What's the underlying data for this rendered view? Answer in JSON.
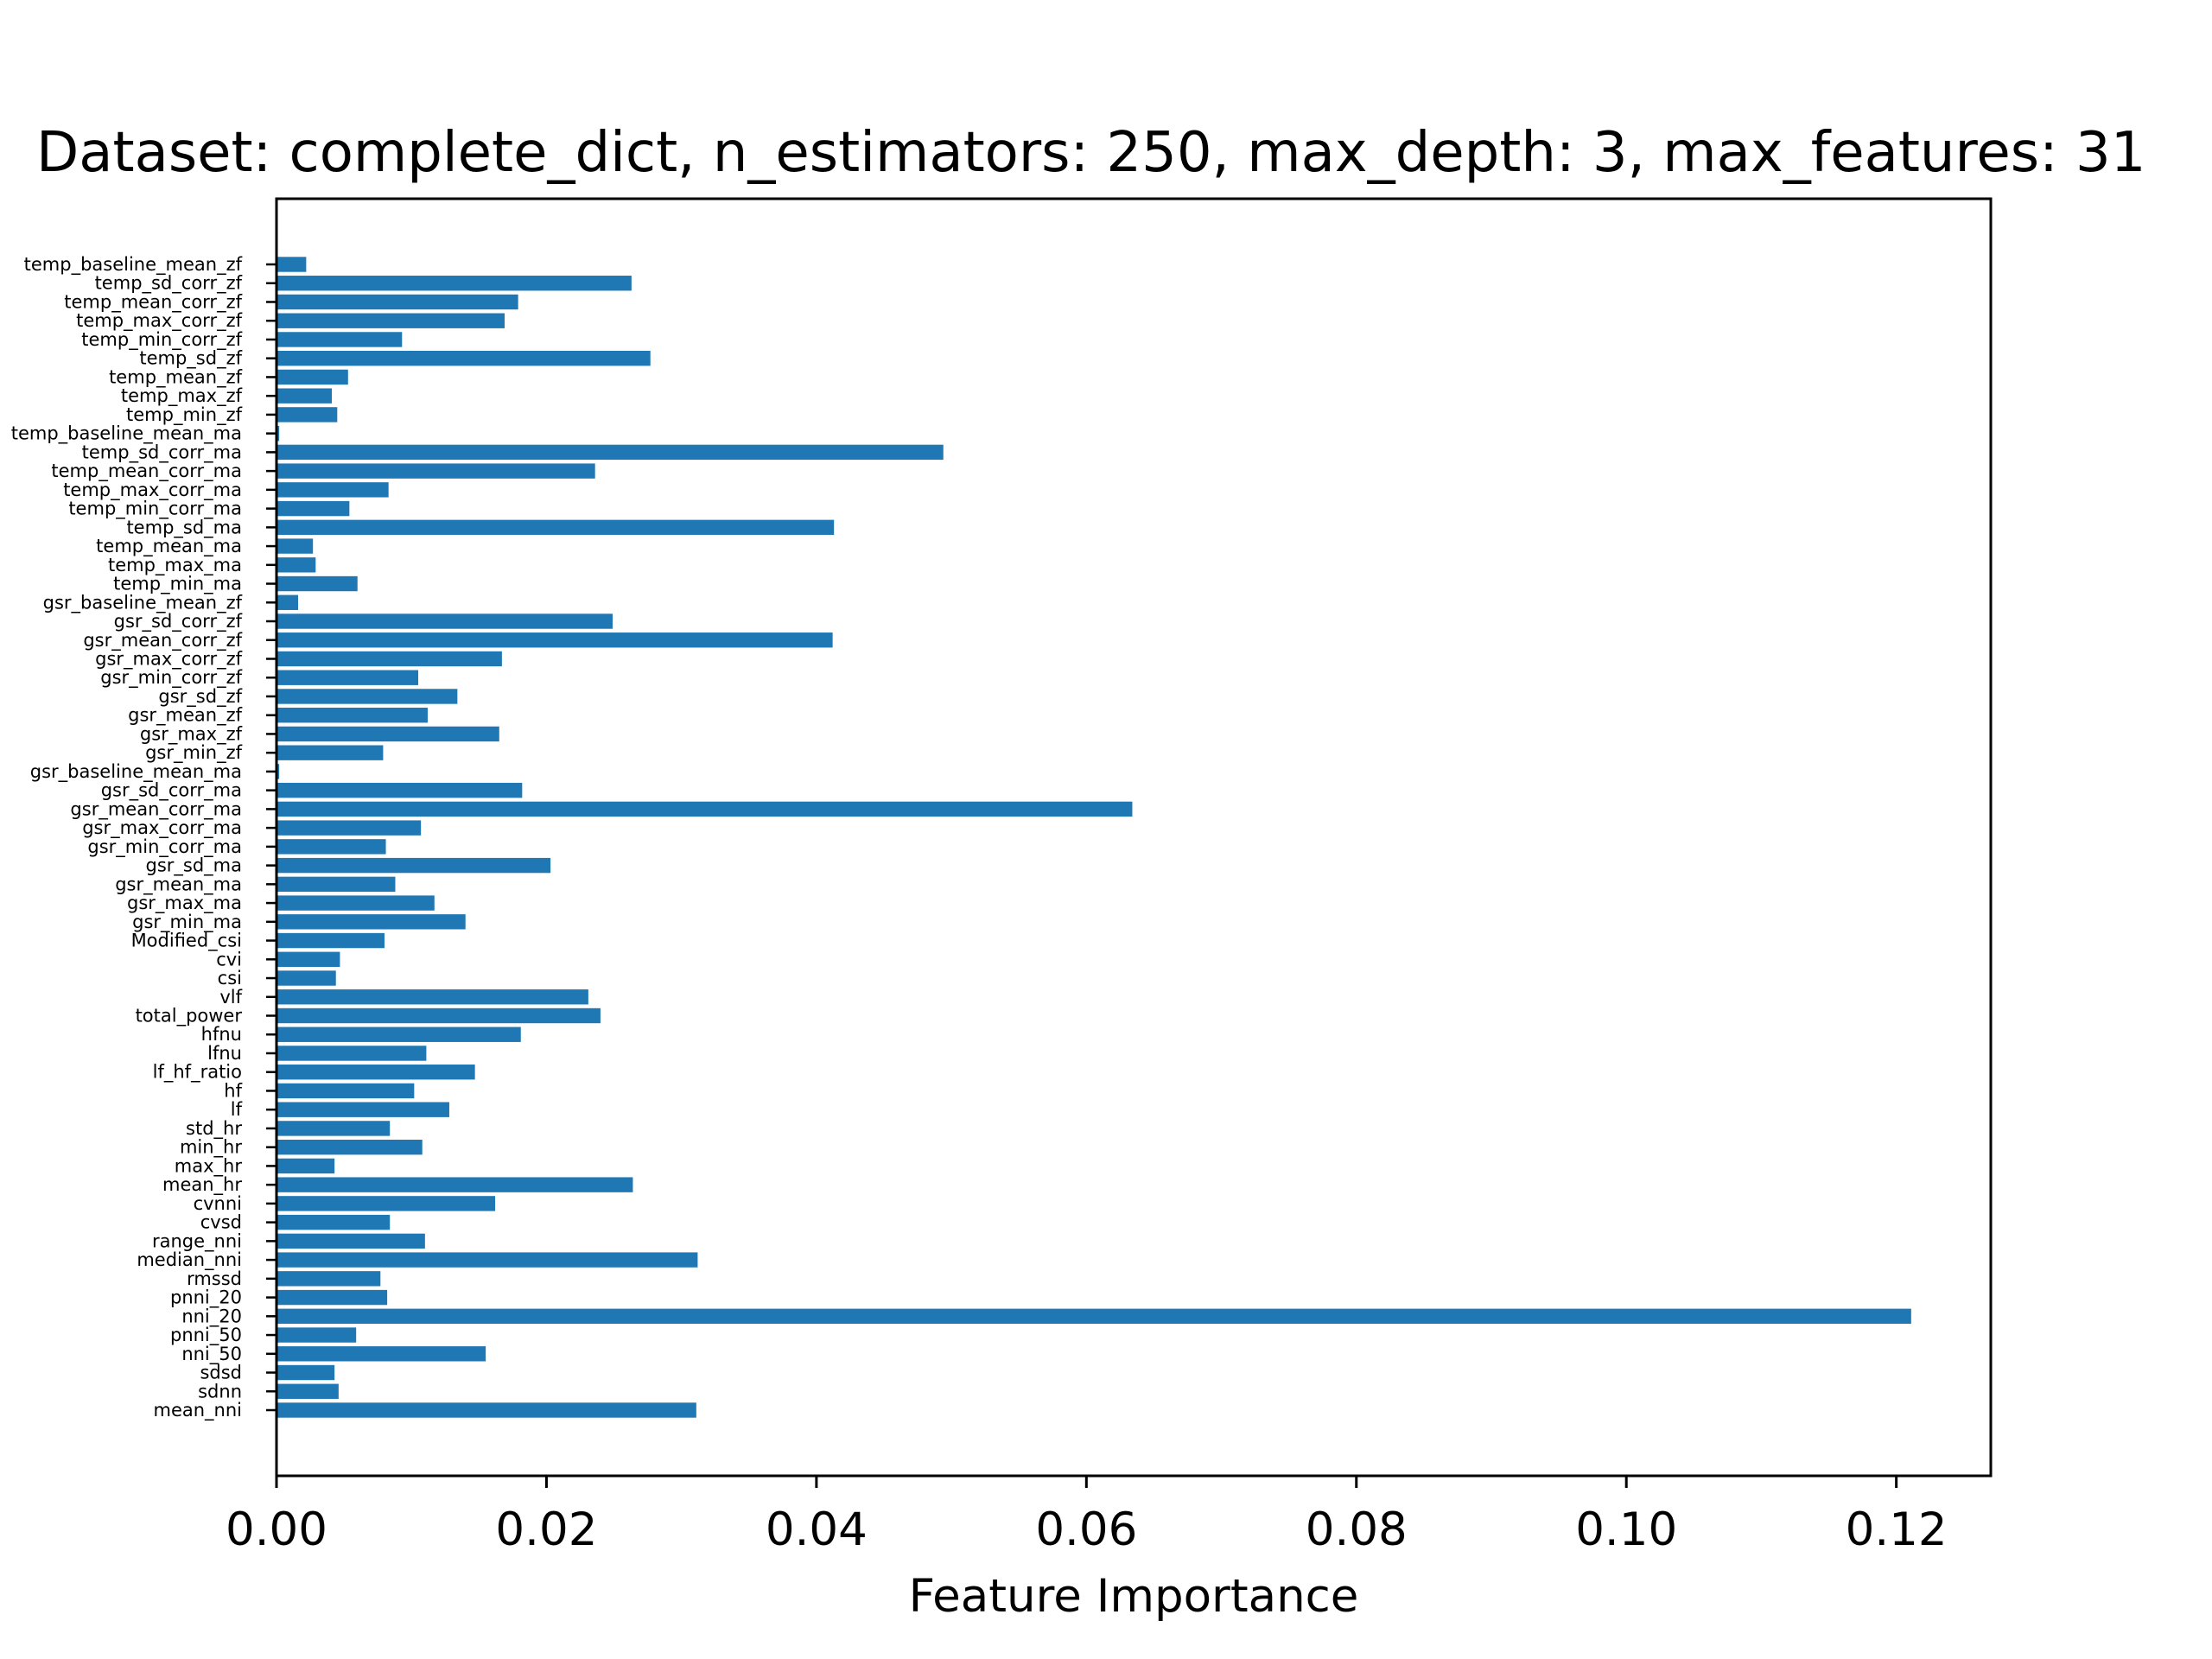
{
  "chart_data": {
    "type": "bar",
    "orientation": "horizontal",
    "title": "Dataset: complete_dict, n_estimators: 250, max_depth: 3, max_features: 31",
    "xlabel": "Feature Importance",
    "ylabel": "",
    "xlim": [
      0,
      0.127
    ],
    "xticks": [
      "0.00",
      "0.02",
      "0.04",
      "0.06",
      "0.08",
      "0.10",
      "0.12"
    ],
    "grid": false,
    "bar_color": "#1f77b4",
    "categories": [
      "mean_nni",
      "sdnn",
      "sdsd",
      "nni_50",
      "pnni_50",
      "nni_20",
      "pnni_20",
      "rmssd",
      "median_nni",
      "range_nni",
      "cvsd",
      "cvnni",
      "mean_hr",
      "max_hr",
      "min_hr",
      "std_hr",
      "lf",
      "hf",
      "lf_hf_ratio",
      "lfnu",
      "hfnu",
      "total_power",
      "vlf",
      "csi",
      "cvi",
      "Modified_csi",
      "gsr_min_ma",
      "gsr_max_ma",
      "gsr_mean_ma",
      "gsr_sd_ma",
      "gsr_min_corr_ma",
      "gsr_max_corr_ma",
      "gsr_mean_corr_ma",
      "gsr_sd_corr_ma",
      "gsr_baseline_mean_ma",
      "gsr_min_zf",
      "gsr_max_zf",
      "gsr_mean_zf",
      "gsr_sd_zf",
      "gsr_min_corr_zf",
      "gsr_max_corr_zf",
      "gsr_mean_corr_zf",
      "gsr_sd_corr_zf",
      "gsr_baseline_mean_zf",
      "temp_min_ma",
      "temp_max_ma",
      "temp_mean_ma",
      "temp_sd_ma",
      "temp_min_corr_ma",
      "temp_max_corr_ma",
      "temp_mean_corr_ma",
      "temp_sd_corr_ma",
      "temp_baseline_mean_ma",
      "temp_min_zf",
      "temp_max_zf",
      "temp_mean_zf",
      "temp_sd_zf",
      "temp_min_corr_zf",
      "temp_max_corr_zf",
      "temp_mean_corr_zf",
      "temp_sd_corr_zf",
      "temp_baseline_mean_zf"
    ],
    "values": [
      0.0311,
      0.0046,
      0.0043,
      0.0155,
      0.0059,
      0.1211,
      0.0082,
      0.0077,
      0.0312,
      0.011,
      0.0084,
      0.0162,
      0.0264,
      0.0043,
      0.0108,
      0.0084,
      0.0128,
      0.0102,
      0.0147,
      0.0111,
      0.0181,
      0.024,
      0.0231,
      0.0044,
      0.0047,
      0.008,
      0.014,
      0.0117,
      0.0088,
      0.0203,
      0.0081,
      0.0107,
      0.0634,
      0.0182,
      0.0002,
      0.0079,
      0.0165,
      0.0112,
      0.0134,
      0.0105,
      0.0167,
      0.0412,
      0.0249,
      0.0016,
      0.006,
      0.0029,
      0.0027,
      0.0413,
      0.0054,
      0.0083,
      0.0236,
      0.0494,
      0.0002,
      0.0045,
      0.0041,
      0.0053,
      0.0277,
      0.0093,
      0.0169,
      0.0179,
      0.0263,
      0.0022
    ]
  }
}
